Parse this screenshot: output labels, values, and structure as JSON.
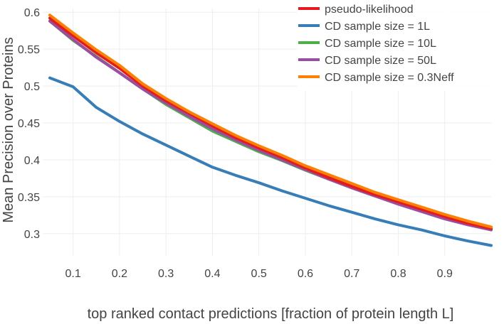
{
  "chart_data": {
    "type": "line",
    "xlabel": "top ranked contact predictions [fraction of protein length L]",
    "ylabel": "Mean Precision over Proteins",
    "xlim": [
      0.05,
      1.0
    ],
    "ylim": [
      0.27,
      0.605
    ],
    "x_ticks": [
      0.1,
      0.2,
      0.3,
      0.4,
      0.5,
      0.6,
      0.7,
      0.8,
      0.9
    ],
    "y_ticks": [
      0.3,
      0.35,
      0.4,
      0.45,
      0.5,
      0.55,
      0.6
    ],
    "grid": true,
    "legend_position": "top-right",
    "x": [
      0.05,
      0.1,
      0.15,
      0.2,
      0.25,
      0.3,
      0.35,
      0.4,
      0.45,
      0.5,
      0.55,
      0.6,
      0.65,
      0.7,
      0.75,
      0.8,
      0.85,
      0.9,
      0.95,
      1.0
    ],
    "series": [
      {
        "name": "pseudo-likelihood",
        "color": "#e41a1c",
        "values": [
          0.592,
          0.568,
          0.545,
          0.524,
          0.5,
          0.48,
          0.463,
          0.446,
          0.43,
          0.416,
          0.403,
          0.389,
          0.376,
          0.364,
          0.353,
          0.343,
          0.333,
          0.323,
          0.314,
          0.307
        ]
      },
      {
        "name": "CD sample size = 1L",
        "color": "#377eb8",
        "values": [
          0.511,
          0.499,
          0.471,
          0.452,
          0.435,
          0.42,
          0.405,
          0.39,
          0.379,
          0.369,
          0.358,
          0.348,
          0.338,
          0.329,
          0.32,
          0.312,
          0.305,
          0.297,
          0.29,
          0.284
        ]
      },
      {
        "name": "CD sample size = 10L",
        "color": "#4daf4a",
        "values": [
          0.588,
          0.562,
          0.54,
          0.518,
          0.496,
          0.475,
          0.457,
          0.439,
          0.425,
          0.411,
          0.399,
          0.386,
          0.374,
          0.362,
          0.351,
          0.341,
          0.331,
          0.321,
          0.313,
          0.306
        ]
      },
      {
        "name": "CD sample size = 50L",
        "color": "#984ea3",
        "values": [
          0.588,
          0.563,
          0.539,
          0.518,
          0.496,
          0.477,
          0.459,
          0.442,
          0.427,
          0.413,
          0.4,
          0.387,
          0.374,
          0.362,
          0.351,
          0.34,
          0.33,
          0.32,
          0.312,
          0.305
        ]
      },
      {
        "name": "CD sample size = 0.3Neff",
        "color": "#ff7f00",
        "values": [
          0.596,
          0.572,
          0.549,
          0.528,
          0.503,
          0.483,
          0.465,
          0.449,
          0.433,
          0.419,
          0.406,
          0.392,
          0.38,
          0.368,
          0.356,
          0.346,
          0.336,
          0.326,
          0.317,
          0.309
        ]
      }
    ]
  }
}
